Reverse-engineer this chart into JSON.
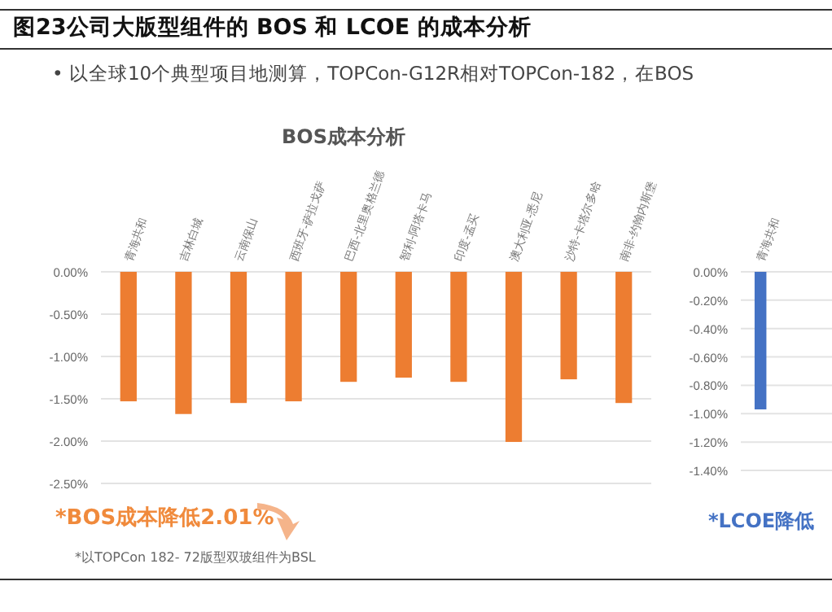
{
  "chart_data": [
    {
      "type": "bar",
      "title": "BOS成本分析",
      "categories": [
        "青海共和",
        "吉林白城",
        "云南保山",
        "西班牙-萨拉戈萨",
        "巴西-北里奥格兰德",
        "智利-阿塔卡马",
        "印度-孟买",
        "澳大利亚-悉尼",
        "沙特-卡塔尔多哈",
        "南非-约翰内斯堡"
      ],
      "values": [
        -1.53,
        -1.68,
        -1.55,
        -1.53,
        -1.3,
        -1.25,
        -1.3,
        -2.01,
        -1.27,
        -1.55
      ],
      "color": "#ed7d31",
      "ylim": [
        -2.5,
        0
      ],
      "yticks": [
        {
          "value": 0,
          "label": "0.00%"
        },
        {
          "value": -0.5,
          "label": "-0.50%"
        },
        {
          "value": -1,
          "label": "-1.00%"
        },
        {
          "value": -1.5,
          "label": "-1.50%"
        },
        {
          "value": -2,
          "label": "-2.00%"
        },
        {
          "value": -2.5,
          "label": "-2.50%"
        }
      ],
      "grid": "y",
      "annotations": [
        "图23公司大版型组件的 BOS 和 LCOE 的成本分析",
        "•  以全球10个典型项目地测算，TOPCon-G12R相对TOPCon-182，在BOS",
        "*BOS成本降低2.01%",
        "*以TOPCon 182- 72版型双玻组件为BSL"
      ]
    },
    {
      "type": "bar",
      "categories": [
        "青海共和"
      ],
      "values": [
        -0.97
      ],
      "color": "#4472c4",
      "ylim": [
        -1.4,
        0
      ],
      "yticks": [
        {
          "value": 0,
          "label": "0.00%"
        },
        {
          "value": -0.2,
          "label": "-0.20%"
        },
        {
          "value": -0.4,
          "label": "-0.40%"
        },
        {
          "value": -0.6,
          "label": "-0.60%"
        },
        {
          "value": -0.8,
          "label": "-0.80%"
        },
        {
          "value": -1,
          "label": "-1.00%"
        },
        {
          "value": -1.2,
          "label": "-1.20%"
        },
        {
          "value": -1.4,
          "label": "-1.40%"
        }
      ],
      "grid": "y",
      "annotations": [
        "*LCOE降低"
      ]
    }
  ]
}
